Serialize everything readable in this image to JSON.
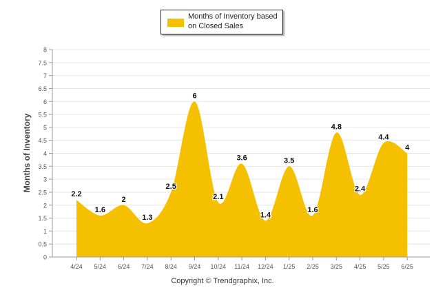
{
  "chart_data": {
    "type": "area",
    "categories": [
      "4/24",
      "5/24",
      "6/24",
      "7/24",
      "8/24",
      "9/24",
      "10/24",
      "11/24",
      "12/24",
      "1/25",
      "2/25",
      "3/25",
      "4/25",
      "5/25",
      "6/25"
    ],
    "series": [
      {
        "name": "Months of Inventory based on Closed Sales",
        "values": [
          2.2,
          1.6,
          2,
          1.3,
          2.5,
          6,
          2.1,
          3.6,
          1.4,
          3.5,
          1.6,
          4.8,
          2.4,
          4.4,
          4
        ]
      }
    ],
    "data_labels": [
      "2.2",
      "1.6",
      "2",
      "1.3",
      "2.5",
      "6",
      "2.1",
      "3.6",
      "1.4",
      "3.5",
      "1.6",
      "4.8",
      "2.4",
      "4.4",
      "4"
    ],
    "ylabel": "Months of Inventory",
    "ylim": [
      0,
      8
    ],
    "yticks": [
      "0",
      "0.5",
      "1",
      "1.5",
      "2",
      "2.5",
      "3",
      "3.5",
      "4",
      "4.5",
      "5",
      "5.5",
      "6",
      "6.5",
      "7",
      "7.5",
      "8"
    ],
    "grid": true,
    "legend_position": "top-center"
  },
  "colors": {
    "series": "#f5c000",
    "grid": "#e6e6e6",
    "axis": "#999999"
  },
  "legend": {
    "label": "Months of Inventory based on Closed Sales"
  },
  "footer": {
    "copyright": "Copyright © Trendgraphix, Inc."
  }
}
